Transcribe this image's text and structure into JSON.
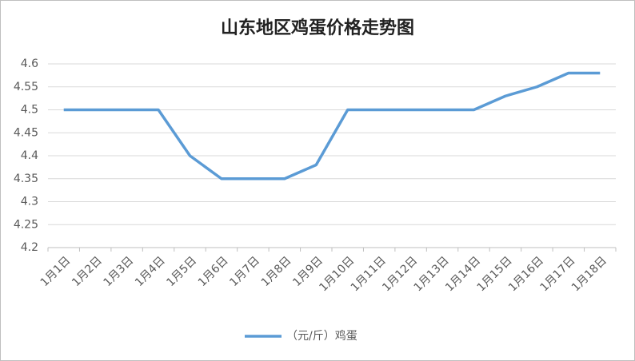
{
  "chart_data": {
    "type": "line",
    "title": "山东地区鸡蛋价格走势图",
    "categories": [
      "1月1日",
      "1月2日",
      "1月3日",
      "1月4日",
      "1月5日",
      "1月6日",
      "1月7日",
      "1月8日",
      "1月9日",
      "1月10日",
      "1月11日",
      "1月12日",
      "1月13日",
      "1月14日",
      "1月15日",
      "1月16日",
      "1月17日",
      "1月18日"
    ],
    "series": [
      {
        "name": "（元/斤）鸡蛋",
        "color": "#5b9bd5",
        "values": [
          4.5,
          4.5,
          4.5,
          4.5,
          4.4,
          4.35,
          4.35,
          4.35,
          4.38,
          4.5,
          4.5,
          4.5,
          4.5,
          4.5,
          4.53,
          4.55,
          4.58,
          4.58
        ]
      }
    ],
    "ylim": [
      4.2,
      4.6
    ],
    "yticks": [
      4.2,
      4.25,
      4.3,
      4.35,
      4.4,
      4.45,
      4.5,
      4.55,
      4.6
    ],
    "grid": true,
    "legend": "bottom"
  }
}
